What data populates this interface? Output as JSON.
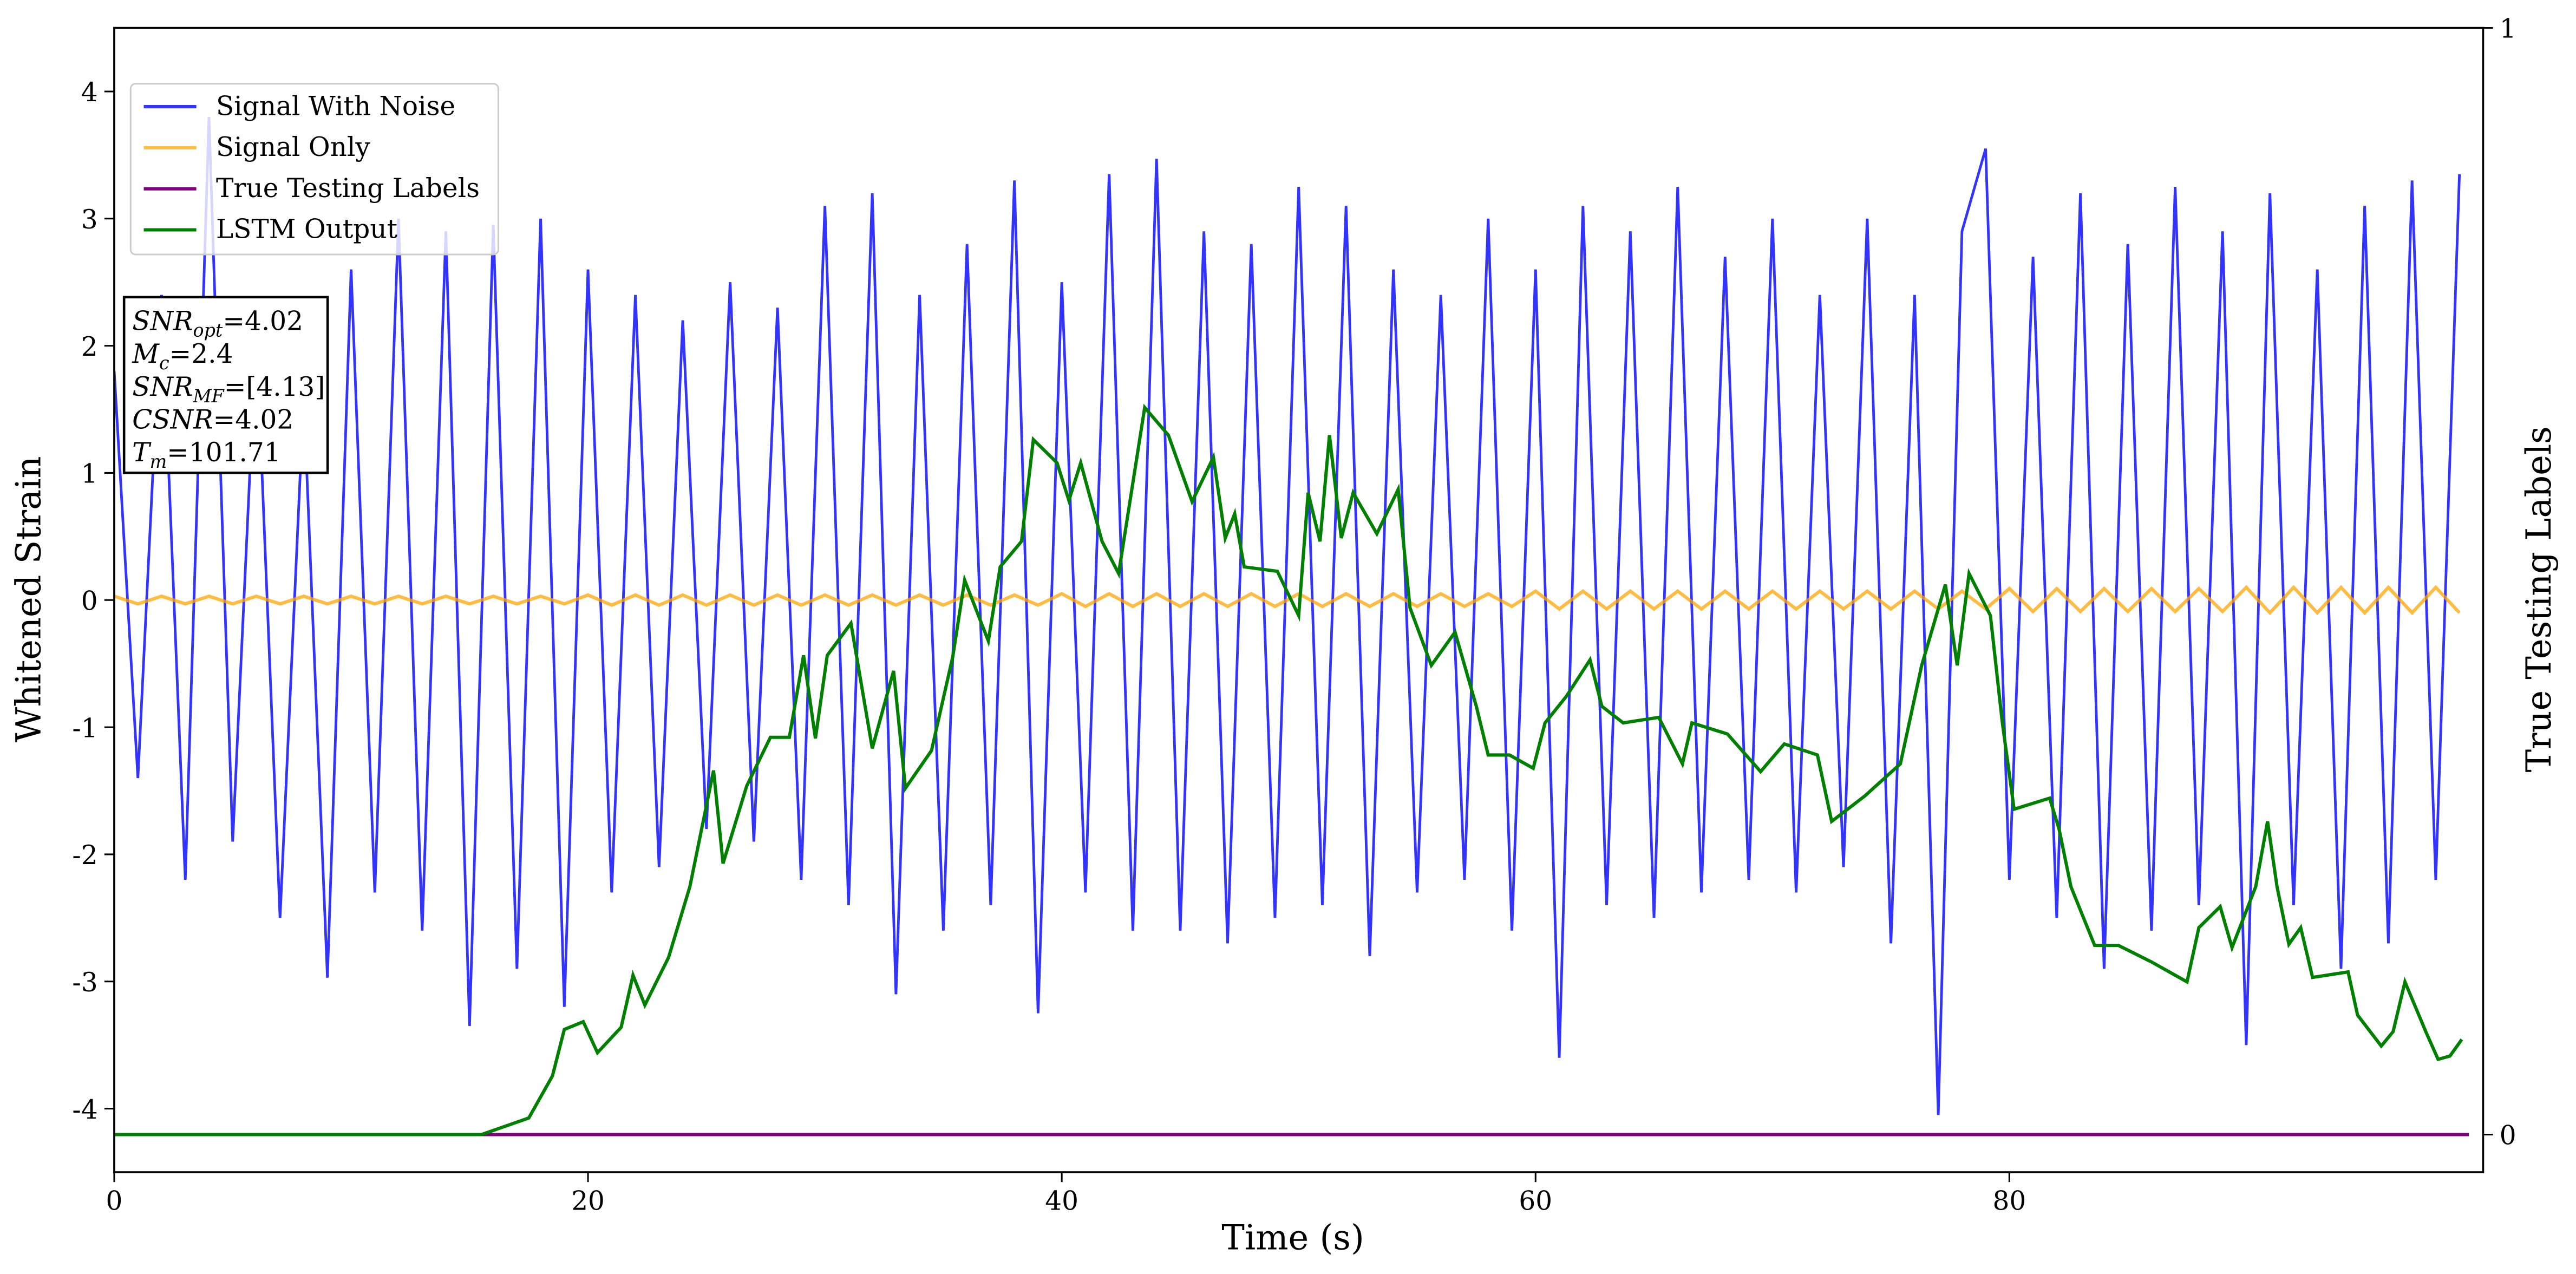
{
  "chart_data": {
    "type": "line",
    "xlabel": "Time (s)",
    "ylabel": "Whitened Strain",
    "y2label": "True Testing Labels",
    "xlim": [
      0,
      100
    ],
    "xticks": [
      0,
      20,
      40,
      60,
      80
    ],
    "ylim": [
      -4.5,
      4.5
    ],
    "yticks": [
      -4,
      -3,
      -2,
      -1,
      0,
      1,
      2,
      3,
      4
    ],
    "y2lim": [
      -0.034,
      1
    ],
    "y2ticks": [
      0,
      1
    ],
    "legend": "upper left",
    "annotation": [
      [
        "SNR",
        "opt",
        "=4.02"
      ],
      [
        "M",
        "c",
        "=2.4"
      ],
      [
        "SNR",
        "MF",
        "=[4.13]"
      ],
      [
        "CSNR",
        "",
        "=4.02"
      ],
      [
        "T",
        "m",
        "=101.71"
      ]
    ],
    "series": [
      {
        "name": "Signal With Noise",
        "color": "#3333ff",
        "opacity": 1,
        "x": [
          0,
          1,
          2,
          3,
          4,
          5,
          6,
          7,
          8,
          9,
          10,
          11,
          12,
          13,
          14,
          15,
          16,
          17,
          18,
          19,
          20,
          21,
          22,
          23,
          24,
          25,
          26,
          27,
          28,
          29,
          30,
          31,
          32,
          33,
          34,
          35,
          36,
          37,
          38,
          39,
          40,
          41,
          42,
          43,
          44,
          45,
          46,
          47,
          48,
          49,
          50,
          51,
          52,
          53,
          54,
          55,
          56,
          57,
          58,
          59,
          60,
          61,
          62,
          63,
          64,
          65,
          66,
          67,
          68,
          69,
          70,
          71,
          72,
          73,
          74,
          75,
          76,
          77,
          78,
          79,
          80,
          81,
          82,
          83,
          84,
          85,
          86,
          87,
          88,
          89,
          90,
          91,
          92,
          93,
          94,
          95,
          96,
          97,
          98,
          99
        ],
        "values": [
          1.8,
          -1.4,
          2.4,
          -2.2,
          3.8,
          -1.9,
          2.1,
          -2.5,
          1.6,
          -2.97,
          2.6,
          -2.3,
          3.0,
          -2.6,
          2.9,
          -3.35,
          2.95,
          -2.9,
          3.0,
          -3.2,
          2.6,
          -2.3,
          2.4,
          -2.1,
          2.2,
          -1.8,
          2.5,
          -1.9,
          2.3,
          -2.2,
          3.1,
          -2.4,
          3.2,
          -3.1,
          2.4,
          -2.6,
          2.8,
          -2.4,
          3.3,
          -3.25,
          2.5,
          -2.3,
          3.35,
          -2.6,
          3.47,
          -2.6,
          2.9,
          -2.7,
          2.8,
          -2.5,
          3.25,
          -2.4,
          3.1,
          -2.8,
          2.6,
          -2.3,
          2.4,
          -2.2,
          3.0,
          -2.6,
          2.6,
          -3.6,
          3.1,
          -2.4,
          2.9,
          -2.5,
          3.25,
          -2.3,
          2.7,
          -2.2,
          3.0,
          -2.3,
          2.4,
          -2.1,
          3.0,
          -2.7,
          2.4,
          -4.05,
          2.9,
          3.55,
          -2.2,
          2.7,
          -2.5,
          3.2,
          -2.9,
          2.8,
          -2.6,
          3.25,
          -2.4,
          2.9,
          -3.5,
          3.2,
          -2.4,
          2.6,
          -2.9,
          3.1,
          -2.7,
          3.3,
          -2.2,
          3.35
        ]
      },
      {
        "name": "Signal Only",
        "color": "#ffa500",
        "opacity": 0.75,
        "x": [
          0,
          1,
          2,
          3,
          4,
          5,
          6,
          7,
          8,
          9,
          10,
          11,
          12,
          13,
          14,
          15,
          16,
          17,
          18,
          19,
          20,
          21,
          22,
          23,
          24,
          25,
          26,
          27,
          28,
          29,
          30,
          31,
          32,
          33,
          34,
          35,
          36,
          37,
          38,
          39,
          40,
          41,
          42,
          43,
          44,
          45,
          46,
          47,
          48,
          49,
          50,
          51,
          52,
          53,
          54,
          55,
          56,
          57,
          58,
          59,
          60,
          61,
          62,
          63,
          64,
          65,
          66,
          67,
          68,
          69,
          70,
          71,
          72,
          73,
          74,
          75,
          76,
          77,
          78,
          79,
          80,
          81,
          82,
          83,
          84,
          85,
          86,
          87,
          88,
          89,
          90,
          91,
          92,
          93,
          94,
          95,
          96,
          97,
          98,
          99
        ],
        "values": [
          0.03,
          -0.03,
          0.03,
          -0.03,
          0.03,
          -0.03,
          0.03,
          -0.03,
          0.03,
          -0.03,
          0.03,
          -0.03,
          0.03,
          -0.03,
          0.03,
          -0.03,
          0.03,
          -0.03,
          0.03,
          -0.03,
          0.04,
          -0.04,
          0.04,
          -0.04,
          0.04,
          -0.04,
          0.04,
          -0.04,
          0.04,
          -0.04,
          0.04,
          -0.04,
          0.04,
          -0.04,
          0.04,
          -0.04,
          0.04,
          -0.04,
          0.04,
          -0.04,
          0.05,
          -0.05,
          0.05,
          -0.05,
          0.05,
          -0.05,
          0.05,
          -0.05,
          0.05,
          -0.05,
          0.05,
          -0.05,
          0.05,
          -0.05,
          0.05,
          -0.05,
          0.05,
          -0.05,
          0.05,
          -0.05,
          0.07,
          -0.07,
          0.07,
          -0.07,
          0.07,
          -0.07,
          0.07,
          -0.07,
          0.07,
          -0.07,
          0.07,
          -0.07,
          0.07,
          -0.07,
          0.07,
          -0.07,
          0.07,
          -0.07,
          0.07,
          -0.07,
          0.09,
          -0.09,
          0.09,
          -0.09,
          0.09,
          -0.09,
          0.09,
          -0.09,
          0.09,
          -0.09,
          0.1,
          -0.1,
          0.1,
          -0.1,
          0.1,
          -0.1,
          0.1,
          -0.1,
          0.1,
          -0.1
        ]
      },
      {
        "name": "True Testing Labels",
        "color": "#800080",
        "opacity": 1,
        "axis": "y2",
        "x": [
          0,
          99.4
        ],
        "values": [
          0,
          0
        ]
      },
      {
        "name": "LSTM Output",
        "color": "#008000",
        "opacity": 1,
        "axis": "y2",
        "x": [
          0,
          15.5,
          17.5,
          18.5,
          19.0,
          19.8,
          20.4,
          21.4,
          21.9,
          22.4,
          23.4,
          24.3,
          25.3,
          25.7,
          26.7,
          27.7,
          28.5,
          29.1,
          29.6,
          30.1,
          31.1,
          32.0,
          32.9,
          33.4,
          34.5,
          35.4,
          35.9,
          36.9,
          37.4,
          38.3,
          38.8,
          39.8,
          40.3,
          40.8,
          41.7,
          42.4,
          43.5,
          44.5,
          45.5,
          46.4,
          46.9,
          47.3,
          47.7,
          49.1,
          50.0,
          50.4,
          50.9,
          51.3,
          51.8,
          52.3,
          53.3,
          54.2,
          54.7,
          55.6,
          56.6,
          57.5,
          58.0,
          58.9,
          59.9,
          60.4,
          61.3,
          62.3,
          62.8,
          63.7,
          65.2,
          66.2,
          66.6,
          68.1,
          69.5,
          70.5,
          71.9,
          72.5,
          73.9,
          75.4,
          76.3,
          77.3,
          77.8,
          78.3,
          79.2,
          79.7,
          80.2,
          81.7,
          82.1,
          82.6,
          83.6,
          84.6,
          86.0,
          87.5,
          88.0,
          88.9,
          89.4,
          90.4,
          90.9,
          91.3,
          91.8,
          92.3,
          92.8,
          94.3,
          94.7,
          95.7,
          96.2,
          96.7,
          97.6,
          98.1,
          98.6,
          99.1
        ],
        "values": [
          0,
          0,
          0.015,
          0.053,
          0.095,
          0.102,
          0.074,
          0.097,
          0.144,
          0.117,
          0.16,
          0.224,
          0.329,
          0.245,
          0.315,
          0.359,
          0.359,
          0.433,
          0.358,
          0.433,
          0.462,
          0.349,
          0.419,
          0.313,
          0.347,
          0.432,
          0.501,
          0.446,
          0.513,
          0.536,
          0.628,
          0.607,
          0.573,
          0.607,
          0.536,
          0.507,
          0.657,
          0.632,
          0.572,
          0.612,
          0.539,
          0.561,
          0.513,
          0.509,
          0.469,
          0.58,
          0.536,
          0.632,
          0.539,
          0.58,
          0.543,
          0.583,
          0.476,
          0.424,
          0.454,
          0.387,
          0.343,
          0.343,
          0.331,
          0.372,
          0.396,
          0.429,
          0.387,
          0.372,
          0.377,
          0.335,
          0.372,
          0.362,
          0.328,
          0.353,
          0.343,
          0.283,
          0.306,
          0.335,
          0.424,
          0.497,
          0.424,
          0.507,
          0.469,
          0.373,
          0.294,
          0.304,
          0.276,
          0.224,
          0.171,
          0.171,
          0.156,
          0.138,
          0.187,
          0.206,
          0.169,
          0.224,
          0.283,
          0.224,
          0.172,
          0.187,
          0.142,
          0.147,
          0.108,
          0.08,
          0.093,
          0.138,
          0.092,
          0.068,
          0.071,
          0.086
        ]
      }
    ]
  }
}
